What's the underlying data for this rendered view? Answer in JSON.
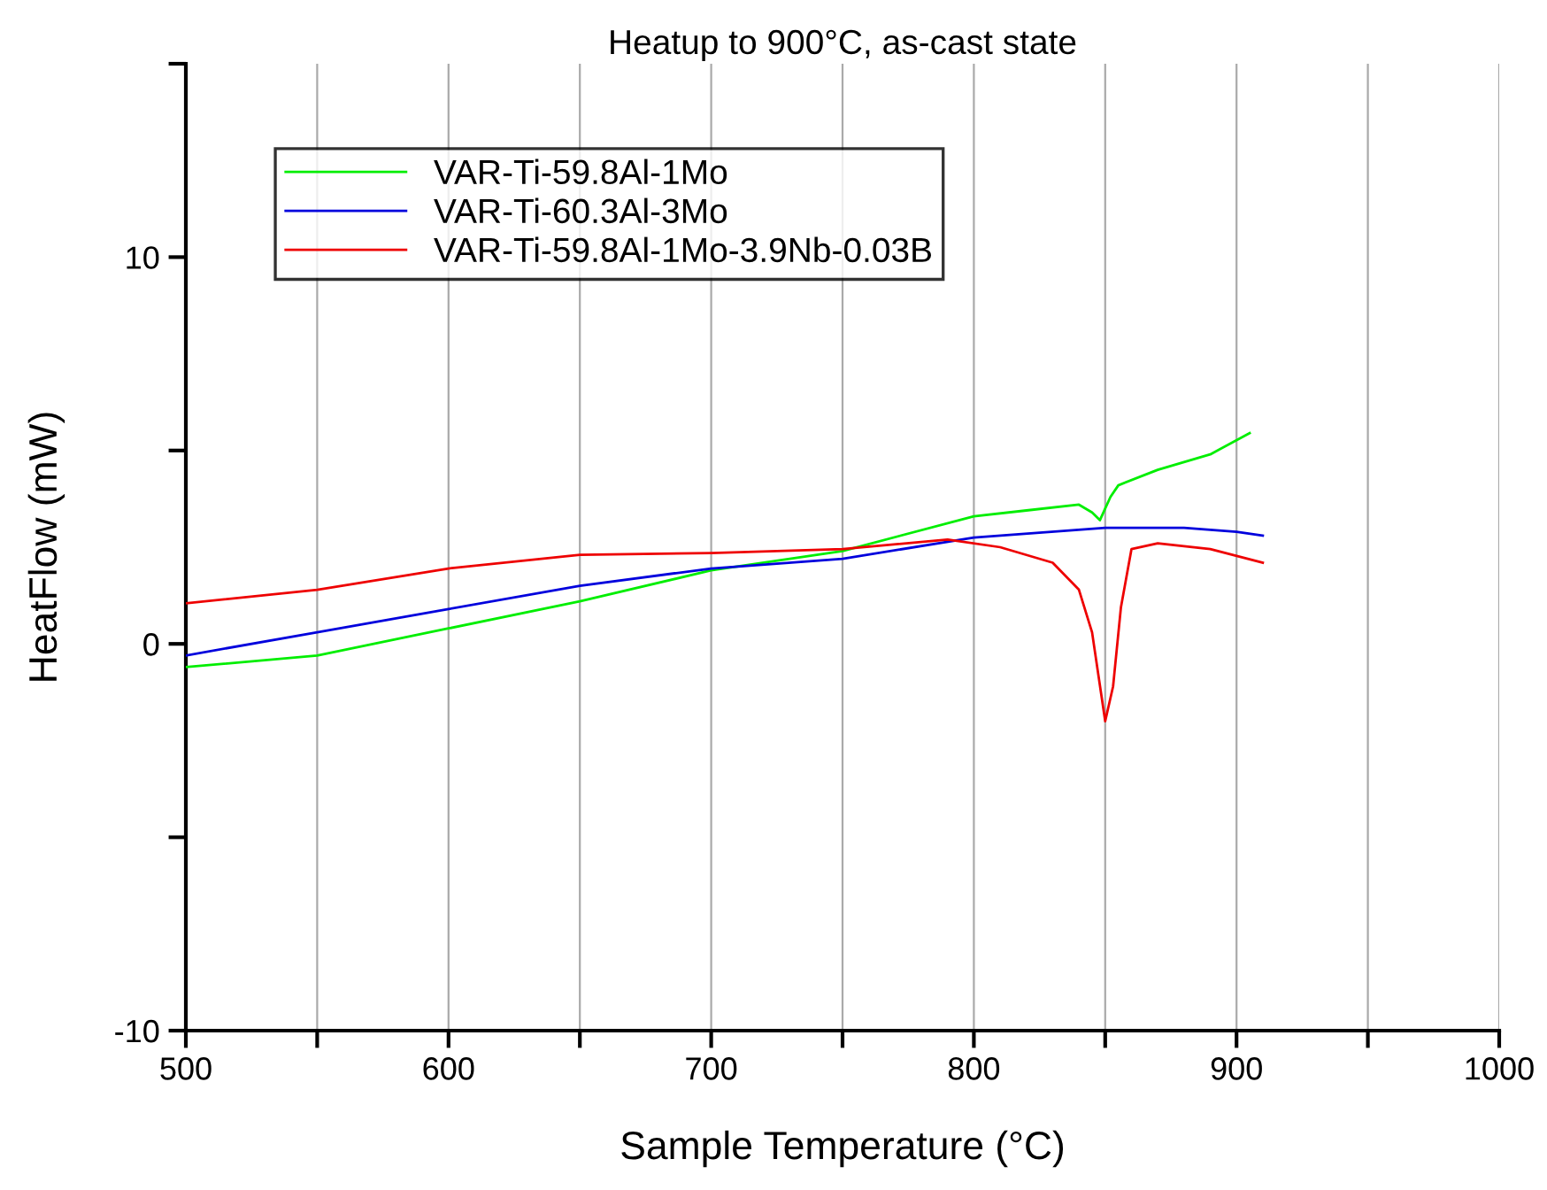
{
  "chart_data": {
    "type": "line",
    "title": "Heatup to 900°C, as-cast state",
    "xlabel": "Sample Temperature (°C)",
    "ylabel": "HeatFlow (mW)",
    "xlim": [
      500,
      1000
    ],
    "ylim": [
      -10,
      15
    ],
    "xticks": [
      500,
      {
        "value": 550,
        "label": null
      },
      600,
      {
        "value": 650,
        "label": null
      },
      700,
      {
        "value": 750,
        "label": null
      },
      800,
      {
        "value": 850,
        "label": null
      },
      900,
      {
        "value": 950,
        "label": null
      },
      1000
    ],
    "yticks": [
      -10,
      {
        "value": -5,
        "label": null
      },
      0,
      {
        "value": 5,
        "label": null
      },
      10,
      {
        "value": 15,
        "label": null
      }
    ],
    "grid": "x",
    "legend": "top left",
    "marker": "none",
    "line_style": "solid",
    "series": [
      {
        "name": "VAR-Ti-59.8Al-1Mo",
        "color": "#00ee00",
        "x": [
          500,
          550,
          600,
          650,
          700,
          750,
          800,
          820,
          840,
          845,
          848,
          852,
          855,
          870,
          890,
          905
        ],
        "values": [
          -0.6,
          -0.3,
          0.4,
          1.1,
          1.9,
          2.4,
          3.3,
          3.45,
          3.6,
          3.4,
          3.2,
          3.8,
          4.1,
          4.5,
          4.9,
          5.45
        ]
      },
      {
        "name": "VAR-Ti-60.3Al-3Mo",
        "color": "#0000dd",
        "x": [
          500,
          550,
          600,
          650,
          700,
          750,
          800,
          850,
          880,
          900,
          910
        ],
        "values": [
          -0.3,
          0.3,
          0.9,
          1.5,
          1.95,
          2.2,
          2.75,
          3.0,
          3.0,
          2.9,
          2.8
        ]
      },
      {
        "name": "VAR-Ti-59.8Al-1Mo-3.9Nb-0.03B",
        "color": "#ee0000",
        "x": [
          500,
          550,
          600,
          650,
          700,
          750,
          790,
          810,
          830,
          840,
          845,
          850,
          853,
          856,
          860,
          870,
          890,
          910
        ],
        "values": [
          1.05,
          1.4,
          1.95,
          2.3,
          2.35,
          2.45,
          2.7,
          2.5,
          2.1,
          1.4,
          0.3,
          -2.0,
          -1.1,
          0.95,
          2.45,
          2.6,
          2.45,
          2.1
        ]
      }
    ]
  }
}
